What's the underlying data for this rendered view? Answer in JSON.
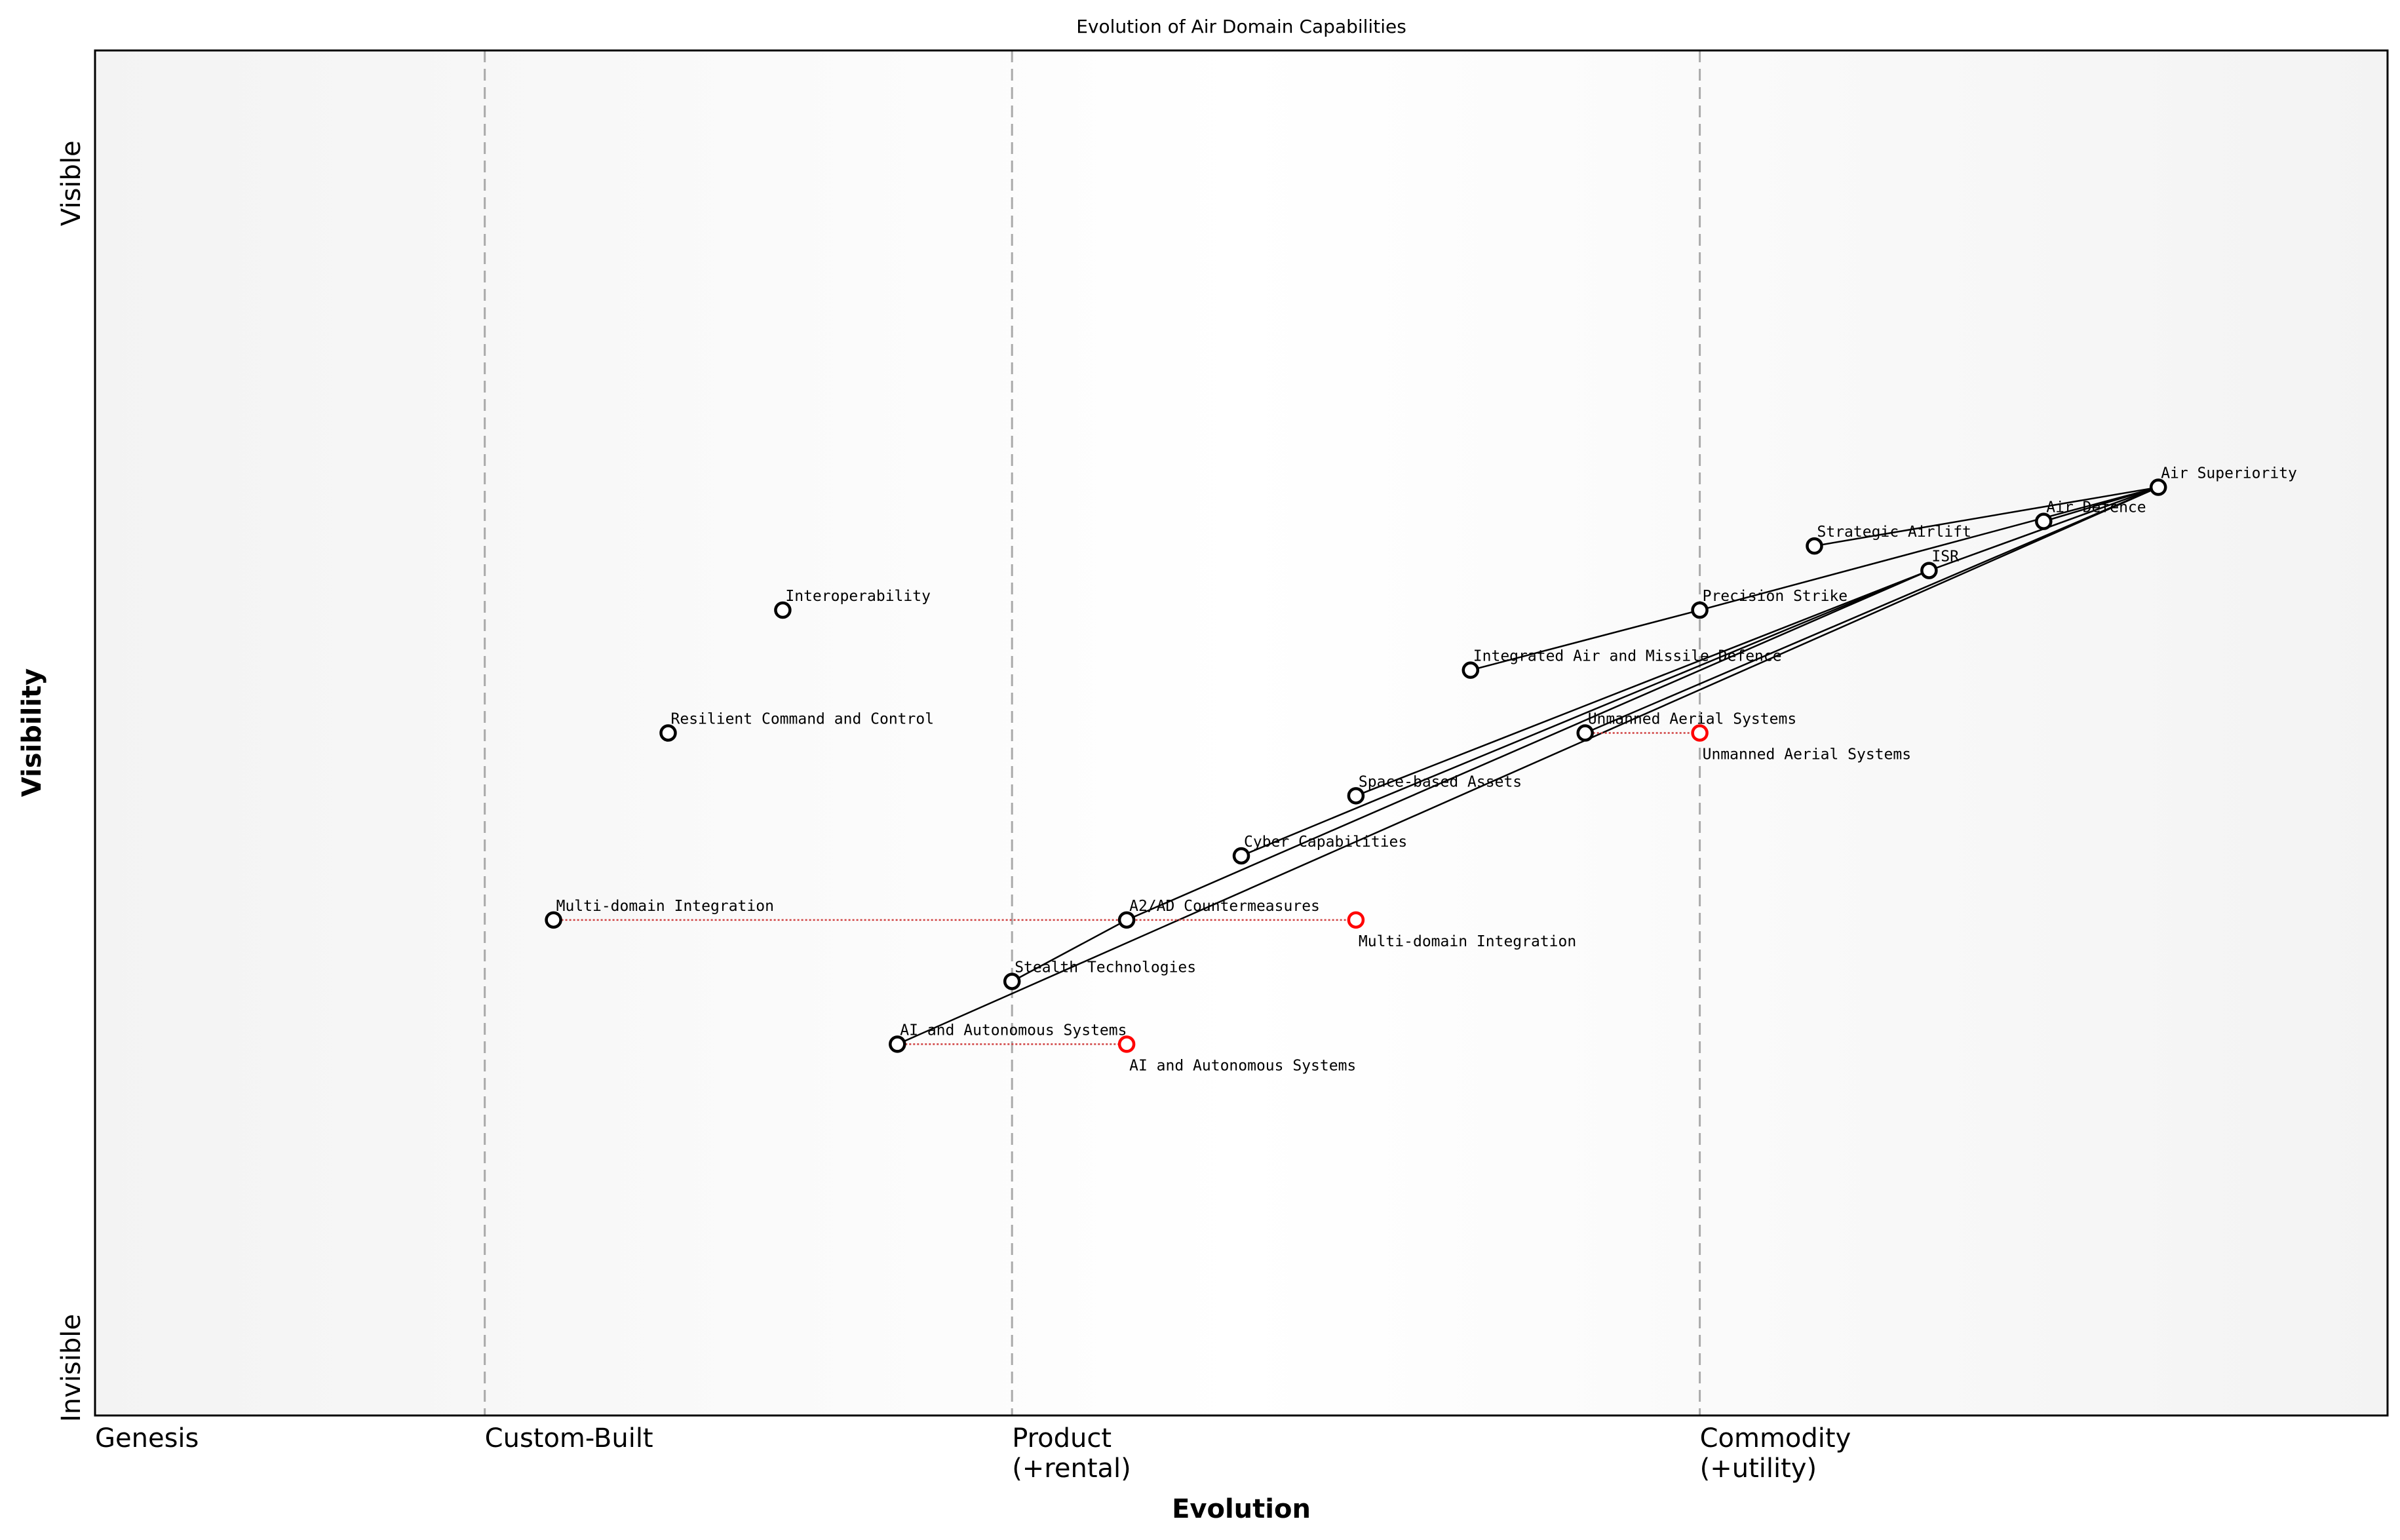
{
  "chart_data": {
    "type": "wardley-map",
    "title": "Evolution of Air Domain Capabilities",
    "xlabel": "Evolution",
    "ylabel": "Visibility",
    "y_top_label": "Visible",
    "y_bottom_label": "Invisible",
    "xlim": [
      0,
      1
    ],
    "ylim": [
      0,
      1
    ],
    "stages": [
      {
        "label": "Genesis",
        "x": 0.0
      },
      {
        "label": "Custom-Built",
        "x": 0.17
      },
      {
        "label": "Product\n(+rental)",
        "x": 0.4
      },
      {
        "label": "Commodity\n(+utility)",
        "x": 0.7
      }
    ],
    "components": [
      {
        "name": "Air Superiority",
        "x": 0.9,
        "y": 0.68
      },
      {
        "name": "Air Defence",
        "x": 0.85,
        "y": 0.655
      },
      {
        "name": "Strategic Airlift",
        "x": 0.75,
        "y": 0.637
      },
      {
        "name": "ISR",
        "x": 0.8,
        "y": 0.619
      },
      {
        "name": "Precision Strike",
        "x": 0.7,
        "y": 0.59
      },
      {
        "name": "Interoperability",
        "x": 0.3,
        "y": 0.59
      },
      {
        "name": "Integrated Air and Missile Defence",
        "x": 0.6,
        "y": 0.546
      },
      {
        "name": "Resilient Command and Control",
        "x": 0.25,
        "y": 0.5
      },
      {
        "name": "Unmanned Aerial Systems",
        "x": 0.65,
        "y": 0.5
      },
      {
        "name": "Space-based Assets",
        "x": 0.55,
        "y": 0.454
      },
      {
        "name": "Cyber Capabilities",
        "x": 0.5,
        "y": 0.41
      },
      {
        "name": "A2/AD Countermeasures",
        "x": 0.45,
        "y": 0.363
      },
      {
        "name": "Multi-domain Integration",
        "x": 0.2,
        "y": 0.363
      },
      {
        "name": "Stealth Technologies",
        "x": 0.4,
        "y": 0.318
      },
      {
        "name": "AI and Autonomous Systems",
        "x": 0.35,
        "y": 0.272
      }
    ],
    "links": [
      [
        "Air Superiority",
        "Strategic Airlift"
      ],
      [
        "Air Superiority",
        "Air Defence"
      ],
      [
        "Air Superiority",
        "ISR"
      ],
      [
        "Air Superiority",
        "Precision Strike"
      ],
      [
        "Air Superiority",
        "Unmanned Aerial Systems"
      ],
      [
        "Air Superiority",
        "AI and Autonomous Systems"
      ],
      [
        "Precision Strike",
        "Integrated Air and Missile Defence"
      ],
      [
        "ISR",
        "Space-based Assets"
      ],
      [
        "ISR",
        "Cyber Capabilities"
      ],
      [
        "ISR",
        "A2/AD Countermeasures"
      ],
      [
        "A2/AD Countermeasures",
        "Stealth Technologies"
      ]
    ],
    "evolutions": [
      {
        "name": "Unmanned Aerial Systems",
        "from_x": 0.65,
        "to_x": 0.7,
        "y": 0.5
      },
      {
        "name": "Multi-domain Integration",
        "from_x": 0.2,
        "to_x": 0.55,
        "y": 0.363
      },
      {
        "name": "AI and Autonomous Systems",
        "from_x": 0.35,
        "to_x": 0.45,
        "y": 0.272
      }
    ],
    "colors": {
      "component": "#000000",
      "evolved": "#ff0000",
      "stage_line": "#aaaaaa",
      "evolve_line": "#d04040"
    }
  }
}
